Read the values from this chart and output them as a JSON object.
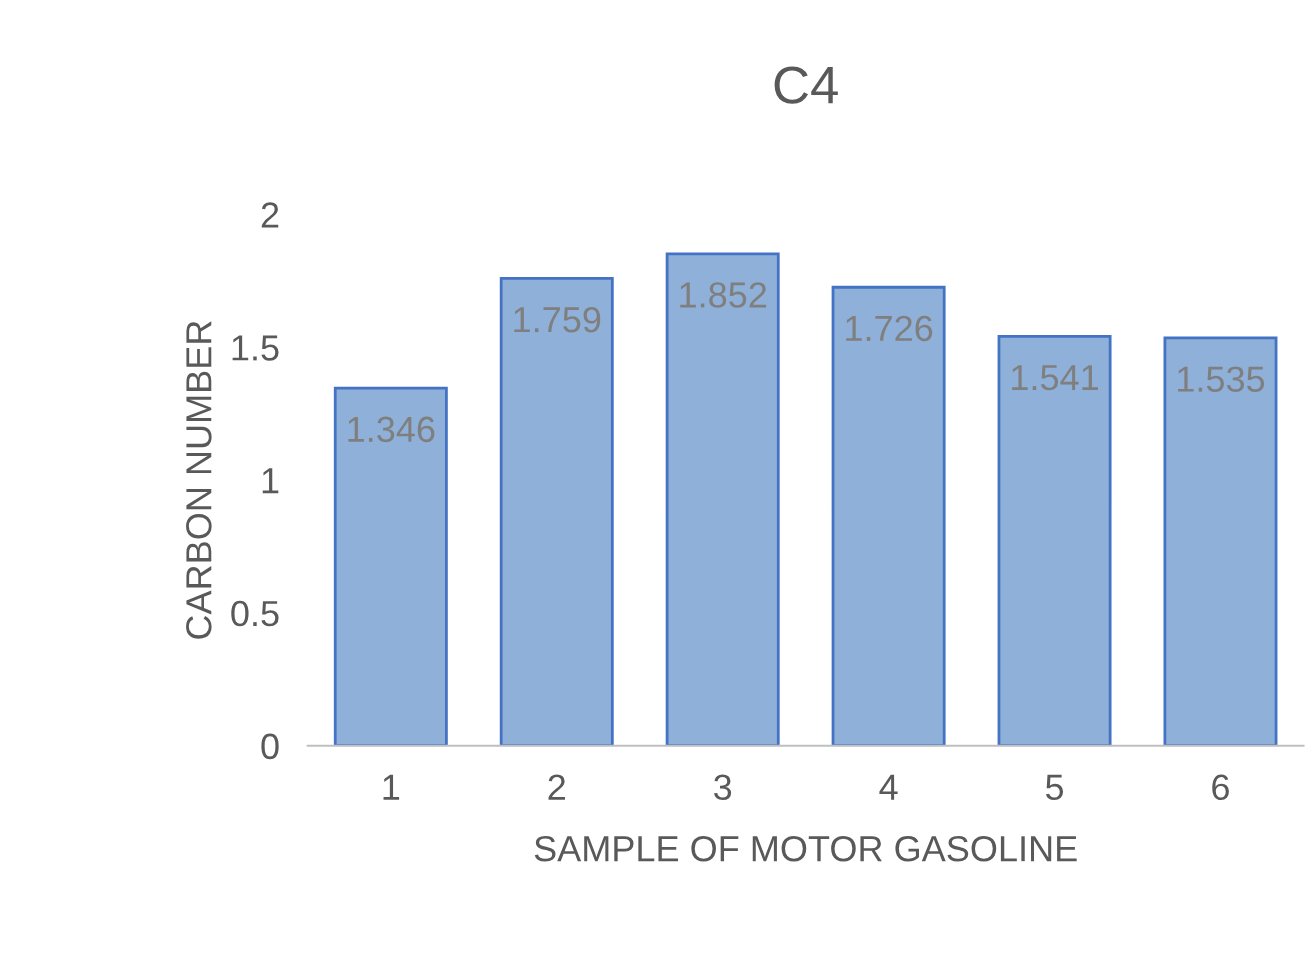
{
  "chart_data": {
    "type": "bar",
    "title": "C4",
    "xlabel": "SAMPLE OF MOTOR GASOLINE",
    "ylabel": "CARBON NUMBER",
    "categories": [
      "1",
      "2",
      "3",
      "4",
      "5",
      "6"
    ],
    "values": [
      1.346,
      1.759,
      1.852,
      1.726,
      1.541,
      1.535
    ],
    "color": "#8fb0d8",
    "ylim": [
      0,
      2
    ],
    "yticks": [
      0,
      0.5,
      1,
      1.5,
      2
    ],
    "grid": false,
    "data_labels": true
  }
}
